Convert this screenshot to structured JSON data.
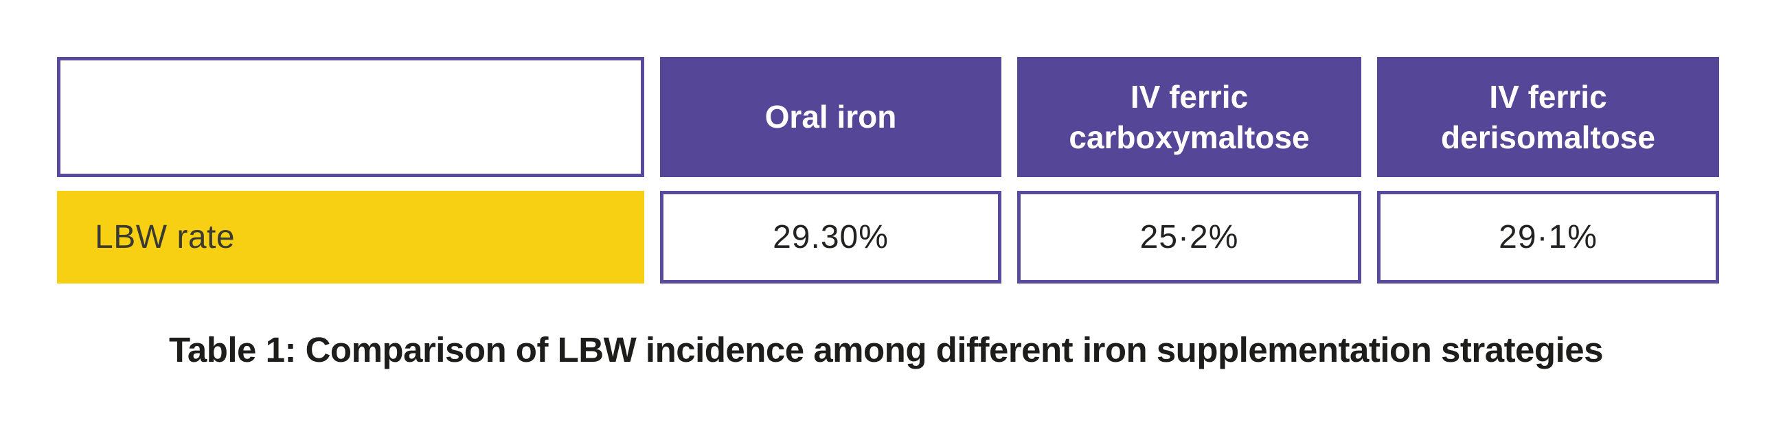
{
  "colors": {
    "header_purple": "#564697",
    "border_purple": "#5a4a9d",
    "row_yellow": "#f7d013",
    "header_text": "#ffffff",
    "body_text": "#1d1d1b",
    "background": "#ffffff"
  },
  "table": {
    "header": {
      "stub_label": "",
      "columns": [
        "Oral iron",
        "IV ferric carboxymaltose",
        "IV ferric derisomaltose"
      ]
    },
    "rows": [
      {
        "label": "LBW rate",
        "values": [
          "29.30%",
          "25·2%",
          "29·1%"
        ]
      }
    ]
  },
  "caption": "Table 1: Comparison of LBW incidence among different iron supplementation strategies",
  "chart_data": {
    "type": "table",
    "title": "Table 1: Comparison of LBW incidence among different iron supplementation strategies",
    "columns": [
      "",
      "Oral iron",
      "IV ferric carboxymaltose",
      "IV ferric derisomaltose"
    ],
    "rows": [
      [
        "LBW rate",
        "29.30%",
        "25·2%",
        "29·1%"
      ]
    ],
    "series": [
      {
        "name": "LBW rate",
        "categories": [
          "Oral iron",
          "IV ferric carboxymaltose",
          "IV ferric derisomaltose"
        ],
        "values": [
          29.3,
          25.2,
          29.1
        ]
      }
    ],
    "unit": "%"
  }
}
